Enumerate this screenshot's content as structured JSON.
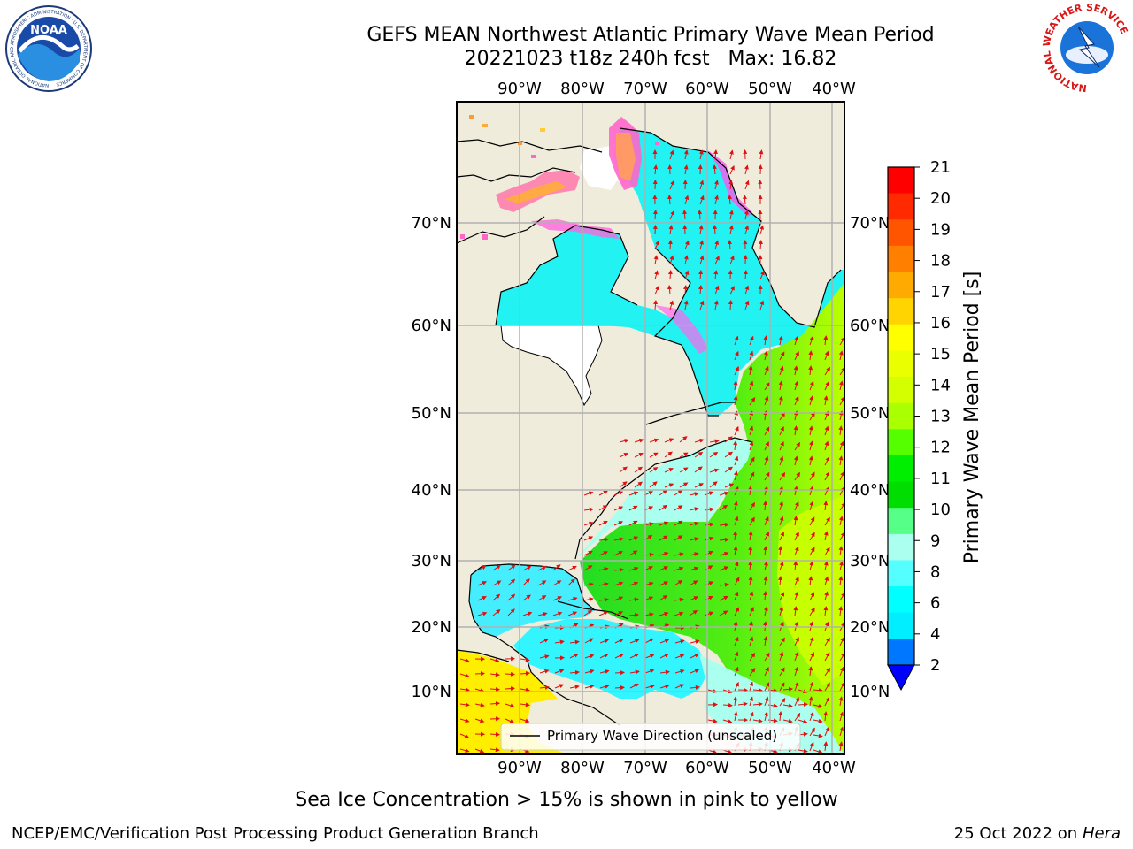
{
  "title": {
    "line1": "GEFS MEAN Northwest Atlantic Primary Wave Mean Period",
    "line2": "20221023 t18z 240h fcst   Max: 16.82"
  },
  "map": {
    "lon_labels": [
      "90°W",
      "80°W",
      "70°W",
      "60°W",
      "50°W",
      "40°W"
    ],
    "lat_labels": [
      "70°N",
      "60°N",
      "50°N",
      "40°N",
      "30°N",
      "20°N",
      "10°N"
    ],
    "legend_label": "Primary Wave Direction (unscaled)",
    "colors": {
      "land": "#efecdc",
      "no_data": "#ffffff",
      "vector": "#e01010",
      "coast": "#000000",
      "grid": "#b0b0b0"
    }
  },
  "colorbar": {
    "label": "Primary Wave Mean Period [s]",
    "ticks": [
      "21",
      "20",
      "19",
      "18",
      "17",
      "16",
      "15",
      "14",
      "13",
      "12",
      "11",
      "10",
      "9",
      "8",
      "6",
      "4",
      "2"
    ],
    "colors_top_to_bottom": [
      "#ff0000",
      "#ff2a00",
      "#ff5500",
      "#ff7f00",
      "#ffaa00",
      "#ffd400",
      "#ffff00",
      "#eaff00",
      "#d4ff00",
      "#aaff00",
      "#55ff00",
      "#00ee00",
      "#00dd00",
      "#55ff88",
      "#aaffee",
      "#55ffff",
      "#00ffff",
      "#00eeff",
      "#0077ff"
    ],
    "under_color": "#0000ff"
  },
  "logos": {
    "noaa_text": "NOAA",
    "noaa_ring_text": "NATIONAL OCEANIC AND ATMOSPHERIC ADMINISTRATION · U.S. DEPARTMENT OF COMMERCE",
    "nws_ring_text": "NATIONAL WEATHER SERVICE"
  },
  "footer": {
    "note": "Sea Ice Concentration > 15% is shown in pink to yellow",
    "credit": "NCEP/EMC/Verification Post Processing Product Generation Branch",
    "date": "25 Oct 2022 on ",
    "machine": "Hera"
  }
}
